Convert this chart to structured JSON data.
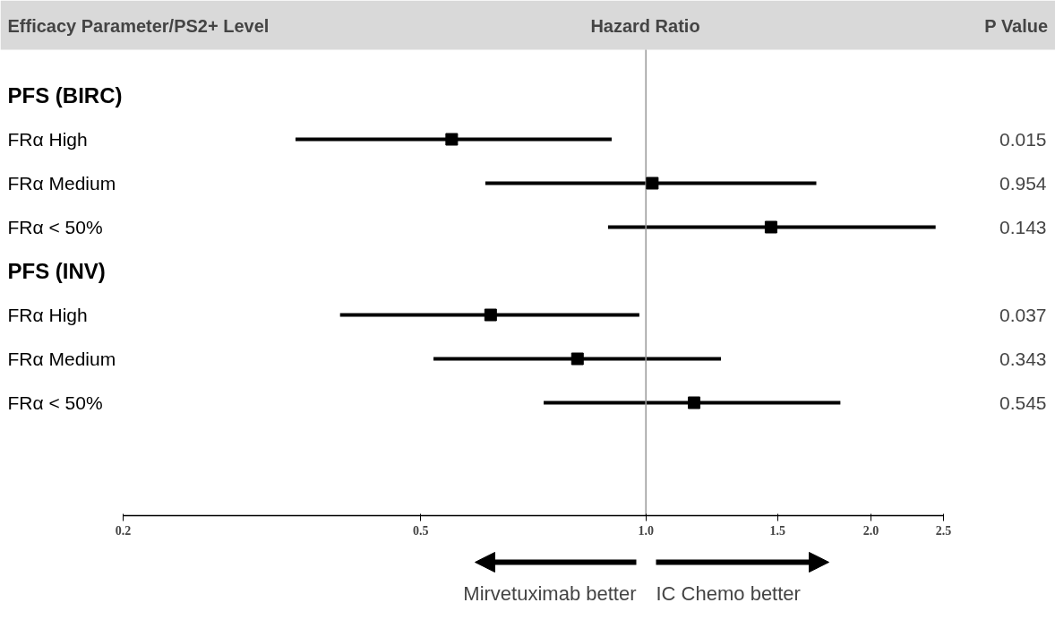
{
  "chart_data": {
    "type": "scatter",
    "orientation": "horizontal",
    "xlabel": "Hazard Ratio",
    "ylabel": "Efficacy Parameter/PS2+ Level",
    "y2label": "P Value",
    "categories": [
      "PFS (BIRC)",
      "FRα High",
      "FRα Medium",
      "FRα < 50%",
      "PFS (INV)",
      "FRα High",
      "FRα Medium",
      "FRα < 50%"
    ],
    "color": "#000000",
    "values": [
      null,
      0.55,
      1.02,
      1.47,
      null,
      0.62,
      0.81,
      1.16
    ],
    "errors": [
      null,
      [
        0.34,
        0.9
      ],
      [
        0.61,
        1.69
      ],
      [
        0.89,
        2.44
      ],
      null,
      [
        0.39,
        0.98
      ],
      [
        0.52,
        1.26
      ],
      [
        0.73,
        1.82
      ]
    ],
    "marker": "square",
    "log": "x",
    "xlim": [
      0.2,
      2.5
    ],
    "xticks": [
      0.2,
      0.5,
      {
        "value": 1,
        "label": "1.0"
      },
      1.5,
      {
        "value": 2,
        "label": "2.0"
      },
      2.5
    ],
    "ref_lines": [
      {
        "axis": "x",
        "value": 1,
        "color": "#999999"
      }
    ],
    "annotations": [
      "0.015",
      "0.954",
      "0.143",
      "0.037",
      "0.343",
      "0.545",
      "Mirvetuximab better",
      "IC Chemo better"
    ]
  }
}
